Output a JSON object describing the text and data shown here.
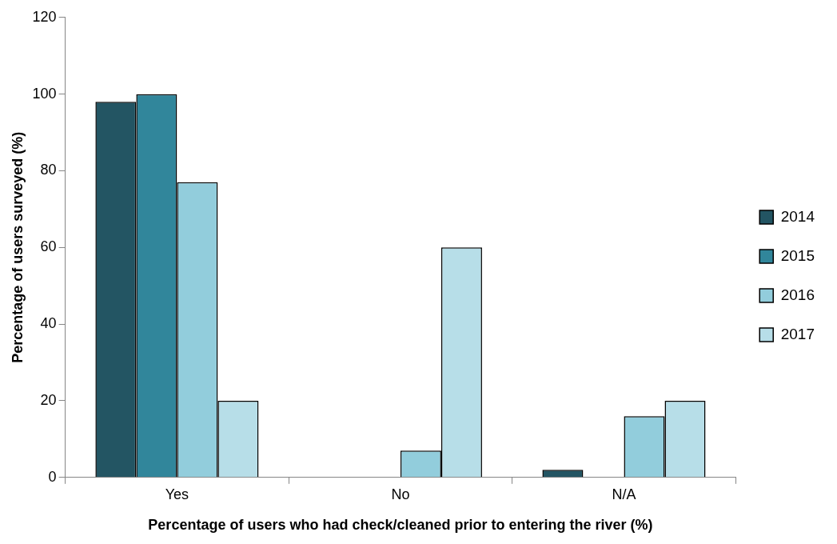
{
  "chart_data": {
    "type": "bar",
    "xlabel": "Percentage of users who had check/cleaned prior to entering the river (%)",
    "ylabel": "Percentage of users surveyed (%)",
    "categories": [
      "Yes",
      "No",
      "N/A"
    ],
    "series": [
      {
        "name": "2014",
        "color": "#235563",
        "values": [
          98,
          0,
          2
        ]
      },
      {
        "name": "2015",
        "color": "#31869b",
        "values": [
          100,
          0,
          0
        ]
      },
      {
        "name": "2016",
        "color": "#92cddc",
        "values": [
          77,
          7,
          16
        ]
      },
      {
        "name": "2017",
        "color": "#b7dee8",
        "values": [
          20,
          60,
          20
        ]
      }
    ],
    "ylim": [
      0,
      120
    ],
    "yticks": [
      0,
      20,
      40,
      60,
      80,
      100,
      120
    ],
    "legend": "right"
  }
}
